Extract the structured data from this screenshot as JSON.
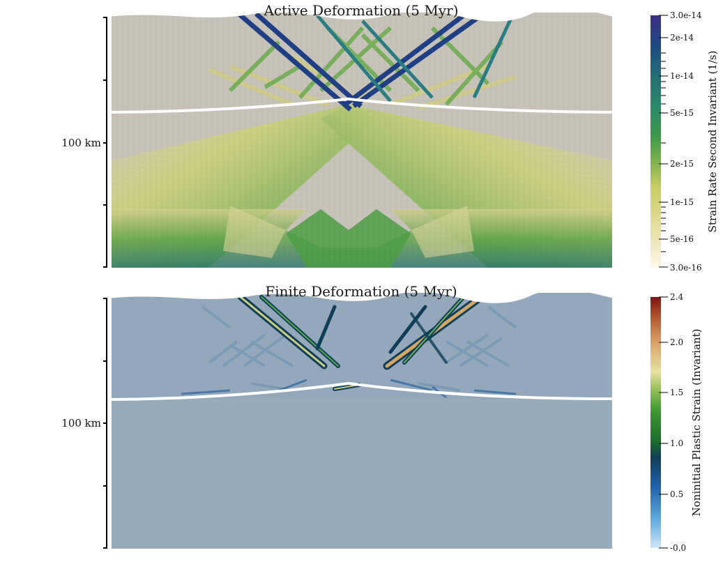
{
  "panels": [
    {
      "title": "Active Deformation (5 Myr)",
      "scale_label": "100 km",
      "colorbar": {
        "title": "Strain Rate Second Invariant (1/s)",
        "scale": "log",
        "range": [
          3e-16,
          3e-14
        ],
        "ticks": [
          "3.0e-14",
          "2e-14",
          "1e-14",
          "5e-15",
          "2e-15",
          "1e-15",
          "5e-16",
          "3.0e-16"
        ],
        "colors": [
          "#fff9ea",
          "#e4dc9a",
          "#c8ce62",
          "#7eb24e",
          "#3d9a48",
          "#2a8a6a",
          "#226e77",
          "#1e4b83",
          "#3b2f84"
        ]
      }
    },
    {
      "title": "Finite Deformation (5 Myr)",
      "scale_label": "100 km",
      "colorbar": {
        "title": "Noninitial Plastic Strain (Invariant)",
        "scale": "linear",
        "range": [
          0.0,
          2.4
        ],
        "ticks": [
          "2.4",
          "2.0",
          "1.5",
          "1.0",
          "0.5",
          "-0.0"
        ],
        "colors": [
          "#cde6f7",
          "#5aa7dc",
          "#1f5fa8",
          "#123e59",
          "#1b6b2c",
          "#2a8a25",
          "#93c057",
          "#e8e2a0",
          "#d9a26a",
          "#b2552d",
          "#7e1410"
        ]
      }
    }
  ]
}
